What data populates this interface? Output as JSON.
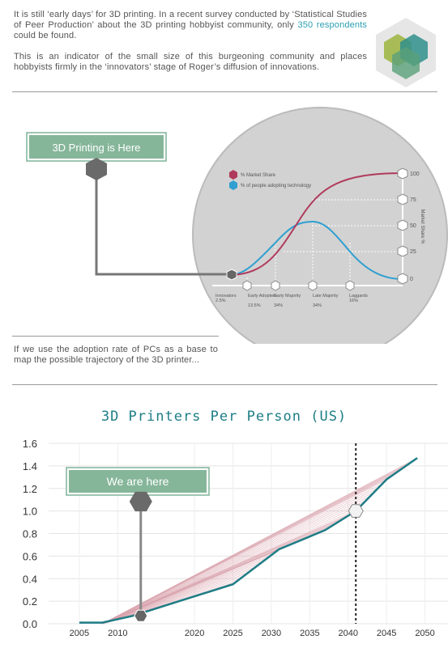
{
  "intro": {
    "p1_before": "It is still ‘early days’ for 3D printing. In a recent survey conducted by ‘Statistical Studies of Peer Production’ about the 3D printing hobbyist community, only ",
    "p1_highlight": "350 respondents",
    "p1_after": " could be found.",
    "p2": "This is an indicator of the small size of this burgeoning community and places hobbyists firmly in the ‘innovators’ stage of Roger’s diffusion of innovations."
  },
  "adoption": {
    "banner": "3D Printing is Here",
    "legend": [
      "% Market Share",
      "% of people adopting technology"
    ],
    "y_axis_label": "Market Share %",
    "y_ticks": [
      "100",
      "75",
      "50",
      "25",
      "0"
    ],
    "stages": [
      {
        "name": "Innovators",
        "pct": "2.5%"
      },
      {
        "name": "Early Adopters",
        "pct": "13.5%"
      },
      {
        "name": "Early Majority",
        "pct": "34%"
      },
      {
        "name": "Late Majority",
        "pct": "34%"
      },
      {
        "name": "Laggards",
        "pct": "16%"
      }
    ],
    "colors": {
      "market_share": "#b03a5b",
      "adopting": "#2e9fd0"
    }
  },
  "pc_text": "If we use the adoption rate of PCs as a base to map the possible trajectory of the 3D printer...",
  "chart_data": {
    "type": "area",
    "title": "3D Printers Per Person (US)",
    "x": [
      2005,
      2008,
      2012,
      2018,
      2025,
      2031,
      2037,
      2041,
      2045,
      2049
    ],
    "y": [
      0.01,
      0.01,
      0.07,
      0.2,
      0.35,
      0.66,
      0.83,
      1.0,
      1.28,
      1.47
    ],
    "xticks": [
      "2005",
      "2010",
      "2020",
      "2025",
      "2030",
      "2035",
      "2040",
      "2045",
      "2050"
    ],
    "yticks": [
      "0.0",
      "0.2",
      "0.4",
      "0.6",
      "0.8",
      "1.0",
      "1.2",
      "1.4",
      "1.6"
    ],
    "ylim": [
      0,
      1.6
    ],
    "xlim": [
      2001,
      2053
    ],
    "banner": "We are here",
    "marker_now_x": 2013,
    "marker_future_x": 2041,
    "line_color": "#1e7d86",
    "fill_color": "#d9a3ad"
  }
}
